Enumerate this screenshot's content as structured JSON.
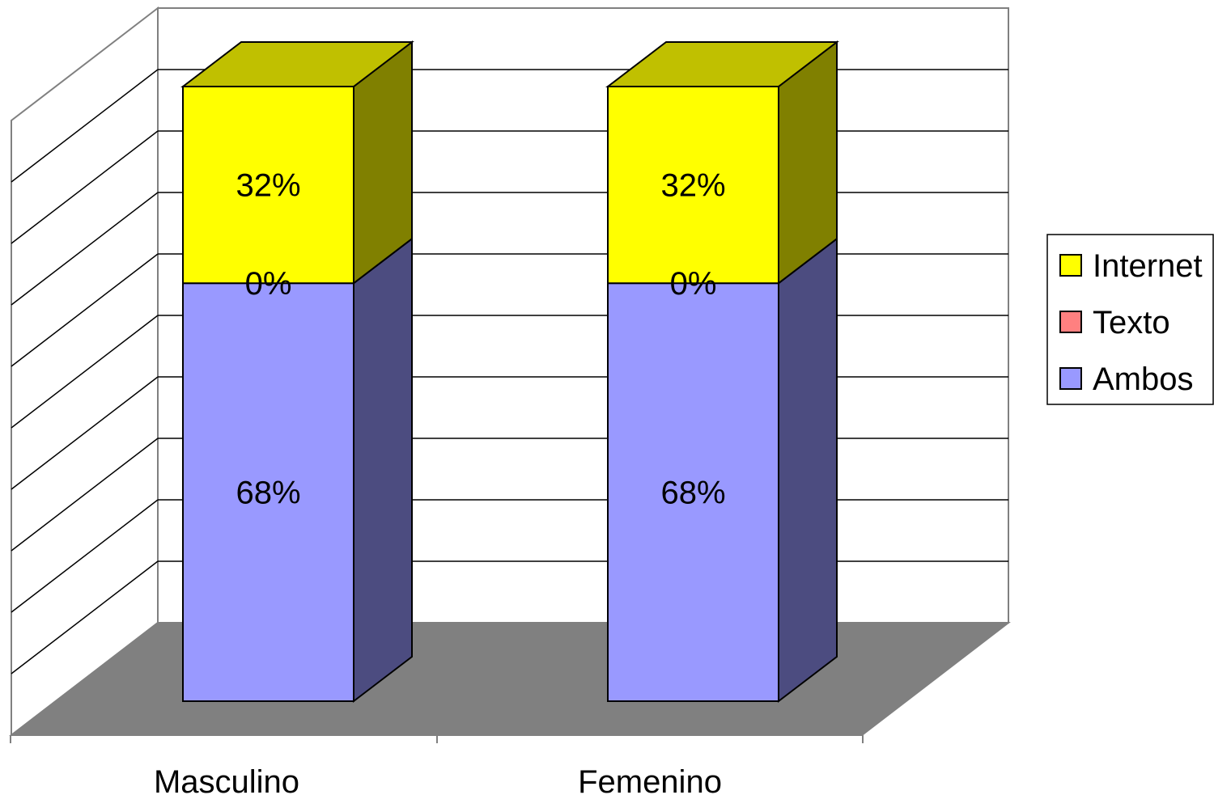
{
  "chart_data": {
    "type": "bar",
    "stacked": true,
    "three_d": true,
    "categories": [
      "Masculino",
      "Femenino"
    ],
    "series": [
      {
        "name": "Ambos",
        "values": [
          68,
          68
        ],
        "labels": [
          "68%",
          "68%"
        ],
        "color": "#9999FF",
        "side_color": "#4C4C80"
      },
      {
        "name": "Texto",
        "values": [
          0,
          0
        ],
        "labels": [
          "0%",
          "0%"
        ],
        "color": "#FF8080",
        "side_color": "#804040"
      },
      {
        "name": "Internet",
        "values": [
          32,
          32
        ],
        "labels": [
          "32%",
          "32%"
        ],
        "color": "#FFFF00",
        "side_color": "#808000"
      }
    ],
    "legend_order": [
      "Internet",
      "Texto",
      "Ambos"
    ],
    "legend_position": "right",
    "ylim": [
      0,
      100
    ],
    "grid": true,
    "floor_color": "#808080",
    "title": "",
    "xlabel": "",
    "ylabel": ""
  }
}
